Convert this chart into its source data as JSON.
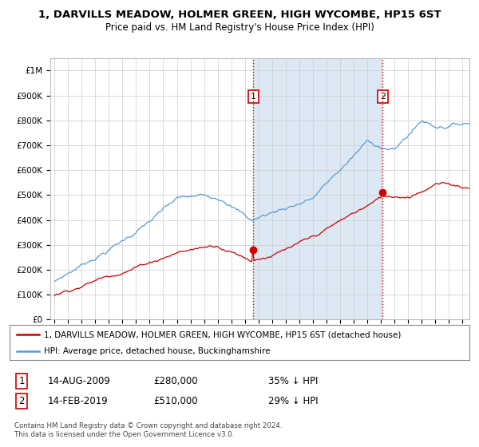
{
  "title": "1, DARVILLS MEADOW, HOLMER GREEN, HIGH WYCOMBE, HP15 6ST",
  "subtitle": "Price paid vs. HM Land Registry's House Price Index (HPI)",
  "ylabel_ticks": [
    "£0",
    "£100K",
    "£200K",
    "£300K",
    "£400K",
    "£500K",
    "£600K",
    "£700K",
    "£800K",
    "£900K",
    "£1M"
  ],
  "ytick_values": [
    0,
    100000,
    200000,
    300000,
    400000,
    500000,
    600000,
    700000,
    800000,
    900000,
    1000000
  ],
  "ylim": [
    0,
    1050000
  ],
  "xlim_start": 1994.7,
  "xlim_end": 2025.5,
  "hpi_color": "#5b9bd5",
  "hpi_fill_color": "#dce9f5",
  "price_color": "#cc0000",
  "sale1_date": 2009.62,
  "sale1_price": 280000,
  "sale2_date": 2019.12,
  "sale2_price": 510000,
  "vline_color": "#cc0000",
  "legend_label_red": "1, DARVILLS MEADOW, HOLMER GREEN, HIGH WYCOMBE, HP15 6ST (detached house)",
  "legend_label_blue": "HPI: Average price, detached house, Buckinghamshire",
  "annotation1_label": "1",
  "annotation2_label": "2",
  "table_row1": [
    "1",
    "14-AUG-2009",
    "£280,000",
    "35% ↓ HPI"
  ],
  "table_row2": [
    "2",
    "14-FEB-2019",
    "£510,000",
    "29% ↓ HPI"
  ],
  "footer": "Contains HM Land Registry data © Crown copyright and database right 2024.\nThis data is licensed under the Open Government Licence v3.0.",
  "background_color": "#ffffff",
  "grid_color": "#cccccc"
}
